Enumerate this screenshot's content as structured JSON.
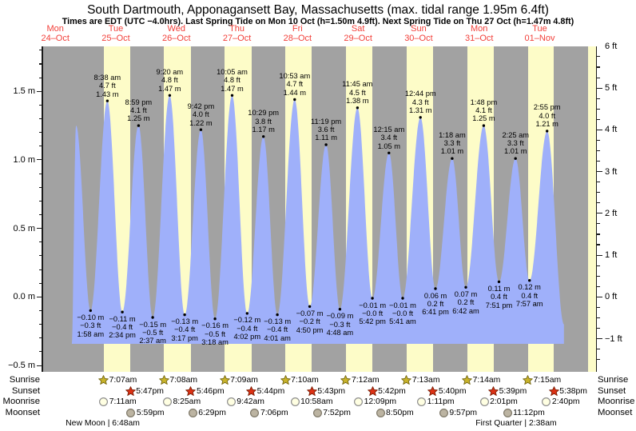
{
  "title": "South Dartmouth, Apponagansett Bay, Massachusetts (max. tidal range 1.95m 6.4ft)",
  "subtitle": "Times are EDT (UTC −4.0hrs). Last Spring Tide on Mon 10 Oct (h=1.50m 4.9ft). Next Spring Tide on Thu 27 Oct (h=1.47m 4.8ft)",
  "colors": {
    "night_band": "#a2a2a2",
    "day_band": "#fdfcc8",
    "water": "#9fb0fa",
    "date_red": "#f2403a",
    "text": "#000000",
    "dot": "#000000",
    "sunrise_star": {
      "fill": "#c9b42a",
      "stroke": "#756712"
    },
    "sunset_star": {
      "fill": "#dd3114",
      "stroke": "#7a1f07"
    },
    "moonrise_circle": {
      "fill": "#ffffe2",
      "stroke": "#8f8f8f"
    },
    "moonset_circle": {
      "fill": "#bcb4a2",
      "stroke": "#7e7868"
    }
  },
  "chart_data": {
    "type": "area",
    "series_label": "tide height",
    "ylim_m": [
      -0.53,
      1.83
    ],
    "unit_left": "m",
    "unit_right": "ft",
    "x_days": [
      {
        "name": "Mon",
        "date": "24–Oct"
      },
      {
        "name": "Tue",
        "date": "25–Oct"
      },
      {
        "name": "Wed",
        "date": "26–Oct"
      },
      {
        "name": "Thu",
        "date": "27–Oct"
      },
      {
        "name": "Fri",
        "date": "28–Oct"
      },
      {
        "name": "Sat",
        "date": "29–Oct"
      },
      {
        "name": "Sun",
        "date": "30–Oct"
      },
      {
        "name": "Mon",
        "date": "31–Oct"
      },
      {
        "name": "Tue",
        "date": "01–Nov"
      }
    ],
    "left_axis_ticks": [
      {
        "label": "1.5 m",
        "m": 1.5
      },
      {
        "label": "1.0 m",
        "m": 1.0
      },
      {
        "label": "0.5 m",
        "m": 0.5
      },
      {
        "label": "0.0 m",
        "m": 0.0
      },
      {
        "label": "−0.5 m",
        "m": -0.5
      }
    ],
    "right_axis_ticks": [
      {
        "label": "6 ft",
        "ft": 6
      },
      {
        "label": "5 ft",
        "ft": 5
      },
      {
        "label": "4 ft",
        "ft": 4
      },
      {
        "label": "3 ft",
        "ft": 3
      },
      {
        "label": "2 ft",
        "ft": 2
      },
      {
        "label": "1 ft",
        "ft": 1
      },
      {
        "label": "0 ft",
        "ft": 0
      },
      {
        "label": "−1 ft",
        "ft": -1
      }
    ],
    "tides": [
      {
        "day": 0,
        "time": "8:14 pm",
        "type": "high",
        "m": 1.25,
        "labeled": false
      },
      {
        "day": 1,
        "time": "1:58 am",
        "type": "low",
        "m": -0.1,
        "m_str": "−0.10 m",
        "ft_str": "−0.3 ft",
        "labeled": true
      },
      {
        "day": 1,
        "time": "8:38 am",
        "type": "high",
        "m": 1.43,
        "m_str": "1.43 m",
        "ft_str": "4.7 ft",
        "labeled": true
      },
      {
        "day": 1,
        "time": "2:34 pm",
        "type": "low",
        "m": -0.11,
        "m_str": "−0.11 m",
        "ft_str": "−0.4 ft",
        "labeled": true
      },
      {
        "day": 1,
        "time": "8:59 pm",
        "type": "high",
        "m": 1.25,
        "m_str": "1.25 m",
        "ft_str": "4.1 ft",
        "labeled": true
      },
      {
        "day": 2,
        "time": "2:37 am",
        "type": "low",
        "m": -0.15,
        "m_str": "−0.15 m",
        "ft_str": "−0.5 ft",
        "labeled": true
      },
      {
        "day": 2,
        "time": "9:20 am",
        "type": "high",
        "m": 1.47,
        "m_str": "1.47 m",
        "ft_str": "4.8 ft",
        "labeled": true
      },
      {
        "day": 2,
        "time": "3:17 pm",
        "type": "low",
        "m": -0.13,
        "m_str": "−0.13 m",
        "ft_str": "−0.4 ft",
        "labeled": true
      },
      {
        "day": 2,
        "time": "9:42 pm",
        "type": "high",
        "m": 1.22,
        "m_str": "1.22 m",
        "ft_str": "4.0 ft",
        "labeled": true
      },
      {
        "day": 3,
        "time": "3:18 am",
        "type": "low",
        "m": -0.16,
        "m_str": "−0.16 m",
        "ft_str": "−0.5 ft",
        "labeled": true
      },
      {
        "day": 3,
        "time": "10:05 am",
        "type": "high",
        "m": 1.47,
        "m_str": "1.47 m",
        "ft_str": "4.8 ft",
        "labeled": true
      },
      {
        "day": 3,
        "time": "4:02 pm",
        "type": "low",
        "m": -0.12,
        "m_str": "−0.12 m",
        "ft_str": "−0.4 ft",
        "labeled": true
      },
      {
        "day": 3,
        "time": "10:29 pm",
        "type": "high",
        "m": 1.17,
        "m_str": "1.17 m",
        "ft_str": "3.8 ft",
        "labeled": true
      },
      {
        "day": 4,
        "time": "4:01 am",
        "type": "low",
        "m": -0.13,
        "m_str": "−0.13 m",
        "ft_str": "−0.4 ft",
        "labeled": true
      },
      {
        "day": 4,
        "time": "10:53 am",
        "type": "high",
        "m": 1.44,
        "m_str": "1.44 m",
        "ft_str": "4.7 ft",
        "labeled": true
      },
      {
        "day": 4,
        "time": "4:50 pm",
        "type": "low",
        "m": -0.07,
        "m_str": "−0.07 m",
        "ft_str": "−0.2 ft",
        "labeled": true
      },
      {
        "day": 4,
        "time": "11:19 pm",
        "type": "high",
        "m": 1.11,
        "m_str": "1.11 m",
        "ft_str": "3.6 ft",
        "labeled": true
      },
      {
        "day": 5,
        "time": "4:48 am",
        "type": "low",
        "m": -0.09,
        "m_str": "−0.09 m",
        "ft_str": "−0.3 ft",
        "labeled": true
      },
      {
        "day": 5,
        "time": "11:45 am",
        "type": "high",
        "m": 1.38,
        "m_str": "1.38 m",
        "ft_str": "4.5 ft",
        "labeled": true
      },
      {
        "day": 5,
        "time": "5:42 pm",
        "type": "low",
        "m": -0.01,
        "m_str": "−0.01 m",
        "ft_str": "−0.0 ft",
        "labeled": true
      },
      {
        "day": 6,
        "time": "12:15 am",
        "type": "high",
        "m": 1.05,
        "m_str": "1.05 m",
        "ft_str": "3.4 ft",
        "labeled": true
      },
      {
        "day": 6,
        "time": "5:41 am",
        "type": "low",
        "m": -0.01,
        "m_str": "−0.01 m",
        "ft_str": "−0.0 ft",
        "labeled": true
      },
      {
        "day": 6,
        "time": "12:44 pm",
        "type": "high",
        "m": 1.31,
        "m_str": "1.31 m",
        "ft_str": "4.3 ft",
        "labeled": true
      },
      {
        "day": 6,
        "time": "6:41 pm",
        "type": "low",
        "m": 0.06,
        "m_str": "0.06 m",
        "ft_str": "0.2 ft",
        "labeled": true
      },
      {
        "day": 7,
        "time": "1:18 am",
        "type": "high",
        "m": 1.01,
        "m_str": "1.01 m",
        "ft_str": "3.3 ft",
        "labeled": true
      },
      {
        "day": 7,
        "time": "6:42 am",
        "type": "low",
        "m": 0.07,
        "m_str": "0.07 m",
        "ft_str": "0.2 ft",
        "labeled": true
      },
      {
        "day": 7,
        "time": "1:48 pm",
        "type": "high",
        "m": 1.25,
        "m_str": "1.25 m",
        "ft_str": "4.1 ft",
        "labeled": true
      },
      {
        "day": 7,
        "time": "7:51 pm",
        "type": "low",
        "m": 0.11,
        "m_str": "0.11 m",
        "ft_str": "0.4 ft",
        "labeled": true
      },
      {
        "day": 8,
        "time": "2:25 am",
        "type": "high",
        "m": 1.01,
        "m_str": "1.01 m",
        "ft_str": "3.3 ft",
        "labeled": true
      },
      {
        "day": 8,
        "time": "7:57 am",
        "type": "low",
        "m": 0.12,
        "m_str": "0.12 m",
        "ft_str": "0.4 ft",
        "labeled": true
      },
      {
        "day": 8,
        "time": "2:55 pm",
        "type": "high",
        "m": 1.21,
        "m_str": "1.21 m",
        "ft_str": "4.0 ft",
        "labeled": true
      }
    ]
  },
  "astro": {
    "rows": [
      {
        "id": "sunrise",
        "label": "Sunrise",
        "icon": "sunrise-star-icon",
        "entries": [
          {
            "day": 1,
            "time": "7:07am"
          },
          {
            "day": 2,
            "time": "7:08am"
          },
          {
            "day": 3,
            "time": "7:09am"
          },
          {
            "day": 4,
            "time": "7:10am"
          },
          {
            "day": 5,
            "time": "7:12am"
          },
          {
            "day": 6,
            "time": "7:13am"
          },
          {
            "day": 7,
            "time": "7:14am"
          },
          {
            "day": 8,
            "time": "7:15am"
          }
        ]
      },
      {
        "id": "sunset",
        "label": "Sunset",
        "icon": "sunset-star-icon",
        "entries": [
          {
            "day": 1,
            "time": "5:47pm"
          },
          {
            "day": 2,
            "time": "5:46pm"
          },
          {
            "day": 3,
            "time": "5:44pm"
          },
          {
            "day": 4,
            "time": "5:43pm"
          },
          {
            "day": 5,
            "time": "5:42pm"
          },
          {
            "day": 6,
            "time": "5:40pm"
          },
          {
            "day": 7,
            "time": "5:39pm"
          },
          {
            "day": 8,
            "time": "5:38pm"
          }
        ]
      },
      {
        "id": "moonrise",
        "label": "Moonrise",
        "icon": "moonrise-circle-icon",
        "entries": [
          {
            "day": 1,
            "time": "7:11am"
          },
          {
            "day": 2,
            "time": "8:25am"
          },
          {
            "day": 3,
            "time": "9:42am"
          },
          {
            "day": 4,
            "time": "10:58am"
          },
          {
            "day": 5,
            "time": "12:09pm"
          },
          {
            "day": 6,
            "time": "1:11pm"
          },
          {
            "day": 7,
            "time": "2:01pm"
          },
          {
            "day": 8,
            "time": "2:40pm"
          }
        ]
      },
      {
        "id": "moonset",
        "label": "Moonset",
        "icon": "moonset-circle-icon",
        "entries": [
          {
            "day": 1,
            "time": "5:59pm"
          },
          {
            "day": 2,
            "time": "6:29pm"
          },
          {
            "day": 3,
            "time": "7:06pm"
          },
          {
            "day": 4,
            "time": "7:52pm"
          },
          {
            "day": 5,
            "time": "8:50pm"
          },
          {
            "day": 6,
            "time": "9:57pm"
          },
          {
            "day": 7,
            "time": "11:12pm"
          }
        ]
      }
    ],
    "moon_phases": [
      {
        "label": "New Moon | 6:48am",
        "day": 1,
        "time": "6:48am"
      },
      {
        "label": "First Quarter | 2:38am",
        "day": 8,
        "time": "2:38am"
      }
    ]
  }
}
